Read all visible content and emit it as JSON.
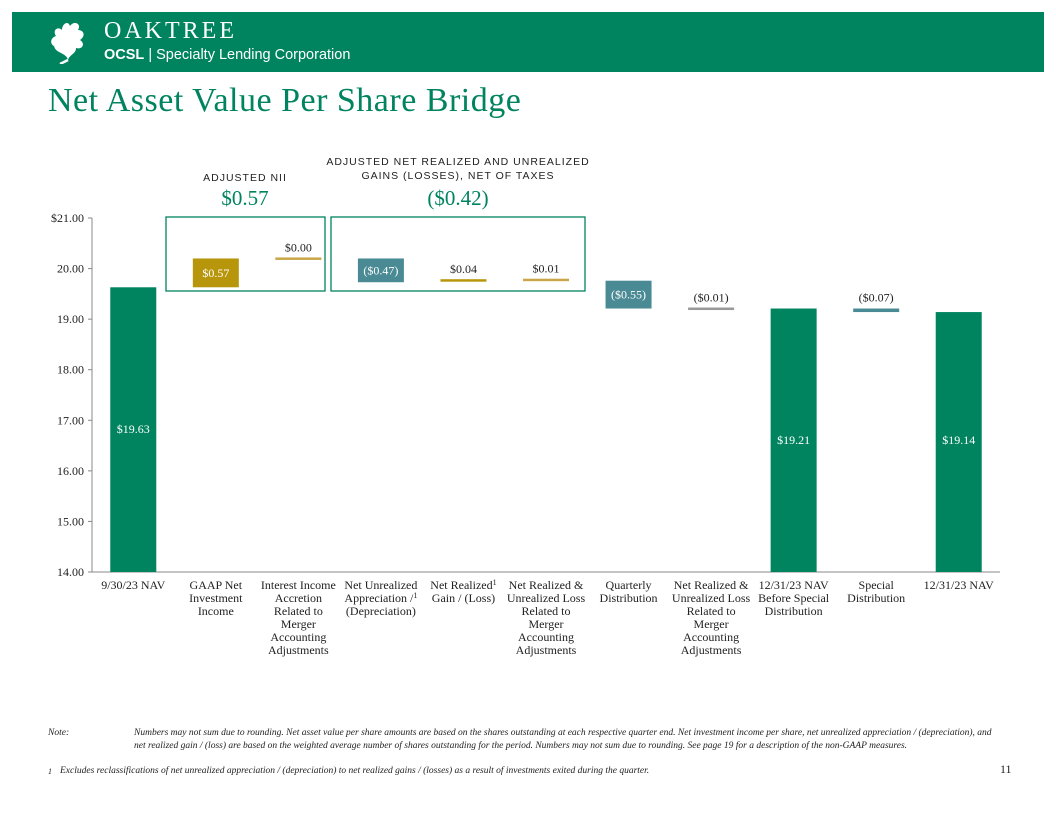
{
  "header": {
    "brand": "OAKTREE",
    "ticker": "OCSL",
    "separator": "|",
    "company": "Specialty Lending Corporation"
  },
  "title": "Net Asset Value Per Share Bridge",
  "groups": [
    {
      "label_line1": "ADJUSTED NII",
      "label_line2": "",
      "total": "$0.57"
    },
    {
      "label_line1": "ADJUSTED NET REALIZED AND UNREALIZED",
      "label_line2": "GAINS (LOSSES), NET OF TAXES",
      "total": "($0.42)"
    }
  ],
  "colors": {
    "brand_green": "#00845f",
    "gold": "#b8960c",
    "teal": "#4a8a94",
    "thin_gold": "#c9a64a"
  },
  "chart_data": {
    "type": "waterfall",
    "ylim": [
      14.0,
      21.0
    ],
    "yticks": [
      "$21.00",
      "20.00",
      "19.00",
      "18.00",
      "17.00",
      "16.00",
      "15.00",
      "14.00"
    ],
    "ytick_values": [
      21,
      20,
      19,
      18,
      17,
      16,
      15,
      14
    ],
    "categories": [
      {
        "lines": [
          "9/30/23 NAV"
        ]
      },
      {
        "lines": [
          "GAAP Net",
          "Investment",
          "Income"
        ]
      },
      {
        "lines": [
          "Interest Income",
          "Accretion",
          "Related to",
          "Merger",
          "Accounting",
          "Adjustments"
        ]
      },
      {
        "lines": [
          "Net Unrealized",
          "Appreciation /",
          "(Depreciation)"
        ],
        "footnote_line": 2
      },
      {
        "lines": [
          "Net Realized",
          "Gain / (Loss)"
        ],
        "footnote_line": 1
      },
      {
        "lines": [
          "Net Realized &",
          "Unrealized Loss",
          "Related to",
          "Merger",
          "Accounting",
          "Adjustments"
        ]
      },
      {
        "lines": [
          "Quarterly",
          "Distribution"
        ]
      },
      {
        "lines": [
          "Net Realized &",
          "Unrealized Loss",
          "Related to",
          "Merger",
          "Accounting",
          "Adjustments"
        ]
      },
      {
        "lines": [
          "12/31/23 NAV",
          "Before Special",
          "Distribution"
        ]
      },
      {
        "lines": [
          "Special",
          "Distribution"
        ]
      },
      {
        "lines": [
          "12/31/23 NAV"
        ]
      }
    ],
    "footnote_mark": "1",
    "bars": [
      {
        "kind": "total",
        "bottom": 14.0,
        "top": 19.63,
        "label": "$19.63",
        "label_pos": "inside",
        "color": "brand_green"
      },
      {
        "kind": "delta",
        "bottom": 19.63,
        "top": 20.2,
        "label": "$0.57",
        "label_pos": "inside",
        "color": "gold"
      },
      {
        "kind": "delta",
        "bottom": 20.2,
        "top": 20.2,
        "label": "$0.00",
        "label_pos": "above",
        "color": "thin_gold"
      },
      {
        "kind": "delta",
        "bottom": 19.73,
        "top": 20.2,
        "label": "($0.47)",
        "label_pos": "inside",
        "color": "teal"
      },
      {
        "kind": "delta",
        "bottom": 19.73,
        "top": 19.77,
        "label": "$0.04",
        "label_pos": "above",
        "color": "gold"
      },
      {
        "kind": "delta",
        "bottom": 19.77,
        "top": 19.78,
        "label": "$0.01",
        "label_pos": "above",
        "color": "thin_gold"
      },
      {
        "kind": "delta",
        "bottom": 19.21,
        "top": 19.76,
        "label": "($0.55)",
        "label_pos": "inside",
        "color": "teal"
      },
      {
        "kind": "delta",
        "bottom": 19.2,
        "top": 19.21,
        "label": "($0.01)",
        "label_pos": "above",
        "color": "thin_gray"
      },
      {
        "kind": "total",
        "bottom": 14.0,
        "top": 19.21,
        "label": "$19.21",
        "label_pos": "inside",
        "color": "brand_green"
      },
      {
        "kind": "delta",
        "bottom": 19.14,
        "top": 19.21,
        "label": "($0.07)",
        "label_pos": "above",
        "color": "teal"
      },
      {
        "kind": "total",
        "bottom": 14.0,
        "top": 19.14,
        "label": "$19.14",
        "label_pos": "inside",
        "color": "brand_green"
      }
    ]
  },
  "notes": {
    "note_label": "Note:",
    "note_text": "Numbers may not sum due to rounding. Net asset value per share amounts are based on the shares outstanding at each respective quarter end. Net investment income per share, net unrealized appreciation / (depreciation), and net realized gain / (loss) are based on the weighted average number of shares outstanding for the period. Numbers may not sum due to rounding. See page 19 for a description of the non-GAAP measures.",
    "footnote_mark": "1",
    "footnote_text": "Excludes reclassifications of net unrealized appreciation / (depreciation) to net realized gains / (losses) as a result of investments exited during the quarter."
  },
  "page_number": "11"
}
